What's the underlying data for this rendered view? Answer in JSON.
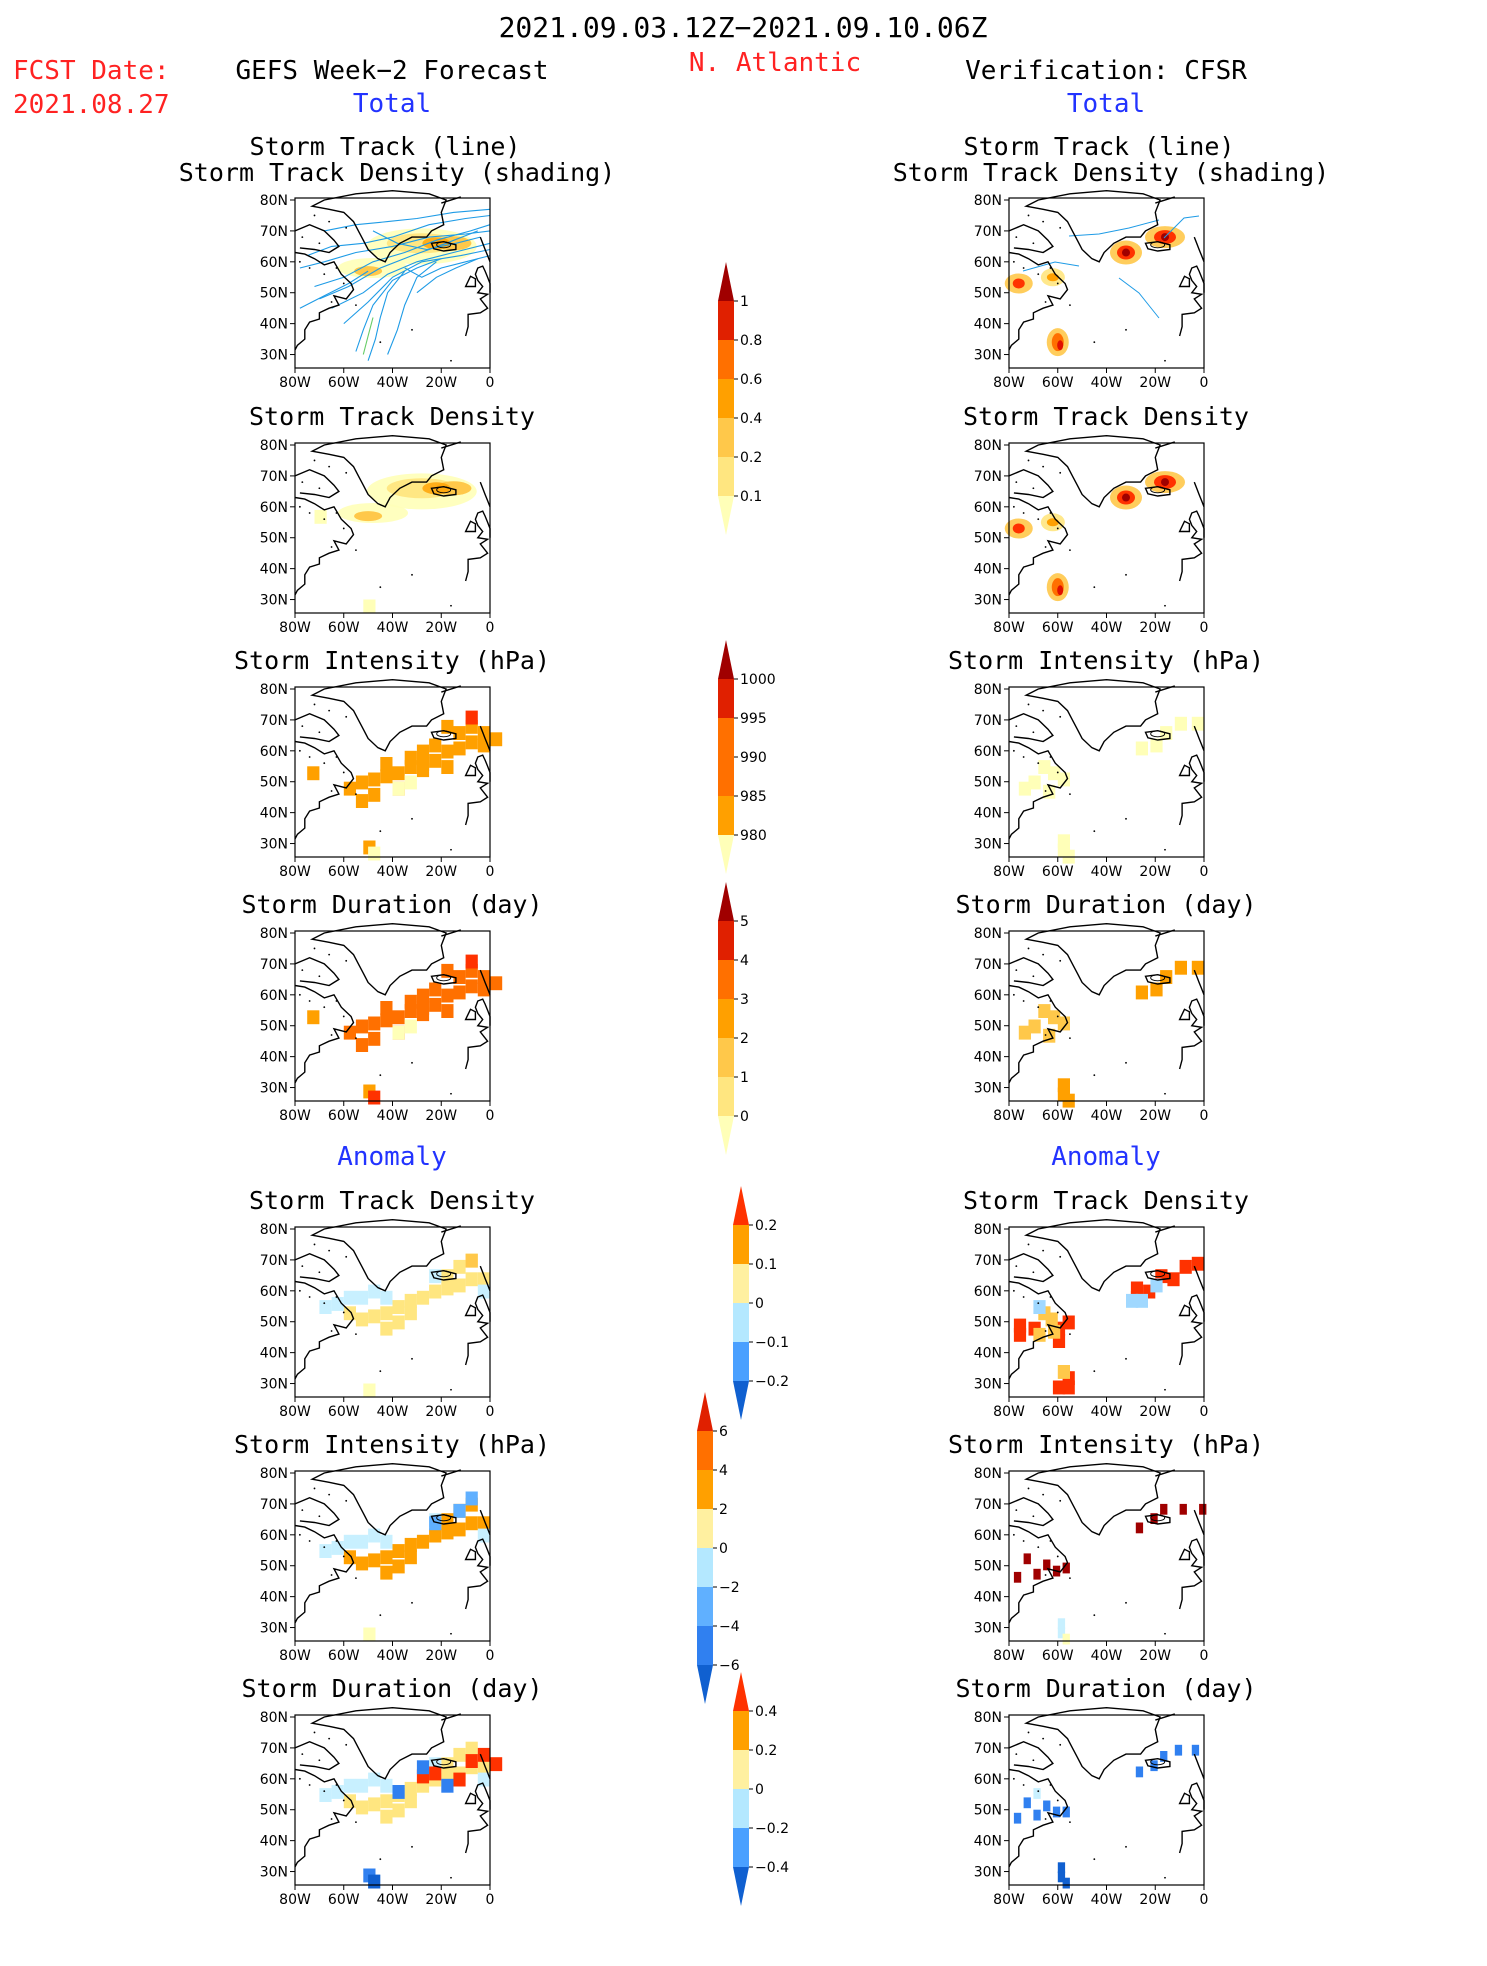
{
  "header": {
    "date_range": "2021.09.03.12Z−2021.09.10.06Z",
    "region": "N. Atlantic",
    "fcst_label": "FCST Date:",
    "fcst_date": "2021.08.27",
    "left_title": "GEFS Week−2 Forecast",
    "right_title": "Verification: CFSR",
    "total_label": "Total",
    "anomaly_label": "Anomaly"
  },
  "panel_titles": {
    "track_line": "Storm Track (line)",
    "track_shading": "Storm Track Density (shading)",
    "density": "Storm Track Density",
    "intensity": "Storm Intensity (hPa)",
    "duration": "Storm Duration (day)"
  },
  "axes": {
    "lat_labels": [
      "80N",
      "70N",
      "60N",
      "50N",
      "40N",
      "30N"
    ],
    "lon_labels": [
      "80W",
      "60W",
      "40W",
      "20W",
      "0"
    ]
  },
  "colorbars": {
    "density_total": [
      "1",
      "0.8",
      "0.6",
      "0.4",
      "0.2",
      "0.1"
    ],
    "intensity_total": [
      "1000",
      "995",
      "990",
      "985",
      "980"
    ],
    "duration_total": [
      "5",
      "4",
      "3",
      "2",
      "1",
      "0"
    ],
    "density_anom": [
      "0.2",
      "0.1",
      "0",
      "−0.1",
      "−0.2"
    ],
    "intensity_anom": [
      "6",
      "4",
      "2",
      "0",
      "−2",
      "−4",
      "−6"
    ],
    "duration_anom": [
      "0.4",
      "0.2",
      "0",
      "−0.2",
      "−0.4"
    ]
  },
  "colors": {
    "red_text": "#ff2222",
    "blue_text": "#2233ff",
    "track_line": "#1e9be6"
  }
}
